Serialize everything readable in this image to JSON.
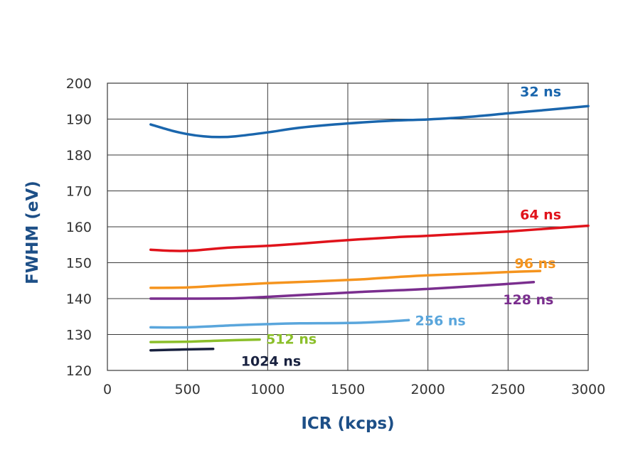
{
  "chart_data": {
    "type": "line",
    "title": "",
    "xlabel": "ICR (kcps)",
    "ylabel": "FWHM (eV)",
    "xlim": [
      0,
      3000
    ],
    "ylim": [
      120,
      200
    ],
    "xticks": [
      0,
      500,
      1000,
      1500,
      2000,
      2500,
      3000
    ],
    "yticks": [
      120,
      130,
      140,
      150,
      160,
      170,
      180,
      190,
      200
    ],
    "grid": true,
    "legend": "inline labels at line ends",
    "series": [
      {
        "name": "32 ns",
        "color": "#1a66ad",
        "x": [
          270,
          400,
          500,
          600,
          700,
          800,
          1000,
          1200,
          1500,
          1800,
          2000,
          2250,
          2500,
          2750,
          3000
        ],
        "y": [
          188.5,
          186.8,
          185.8,
          185.2,
          185.0,
          185.2,
          186.3,
          187.6,
          188.8,
          189.6,
          189.9,
          190.6,
          191.6,
          192.6,
          193.6
        ]
      },
      {
        "name": "64 ns",
        "color": "#e0131b",
        "x": [
          270,
          400,
          500,
          600,
          700,
          800,
          1000,
          1200,
          1500,
          1800,
          2000,
          2250,
          2500,
          2750,
          3000
        ],
        "y": [
          153.6,
          153.3,
          153.3,
          153.6,
          154.0,
          154.3,
          154.7,
          155.3,
          156.3,
          157.1,
          157.5,
          158.1,
          158.7,
          159.5,
          160.3
        ]
      },
      {
        "name": "96 ns",
        "color": "#f5941e",
        "x": [
          270,
          500,
          700,
          1000,
          1300,
          1600,
          1800,
          2000,
          2300,
          2500,
          2700
        ],
        "y": [
          143.0,
          143.1,
          143.6,
          144.3,
          144.8,
          145.4,
          146.0,
          146.5,
          147.0,
          147.4,
          147.7
        ]
      },
      {
        "name": "128 ns",
        "color": "#7a2e8e",
        "x": [
          270,
          500,
          800,
          1000,
          1300,
          1600,
          1800,
          2000,
          2300,
          2500,
          2660
        ],
        "y": [
          140.0,
          140.0,
          140.1,
          140.5,
          141.2,
          141.9,
          142.3,
          142.7,
          143.5,
          144.1,
          144.6
        ]
      },
      {
        "name": "256 ns",
        "color": "#5aa6dc",
        "x": [
          270,
          500,
          800,
          1000,
          1200,
          1500,
          1700,
          1880
        ],
        "y": [
          132.0,
          132.0,
          132.6,
          132.9,
          133.1,
          133.2,
          133.5,
          134.0
        ]
      },
      {
        "name": "512 ns",
        "color": "#8bbf2a",
        "x": [
          270,
          500,
          700,
          950
        ],
        "y": [
          127.9,
          128.0,
          128.3,
          128.6
        ]
      },
      {
        "name": "1024 ns",
        "color": "#18213f",
        "x": [
          270,
          450,
          660
        ],
        "y": [
          125.6,
          125.8,
          126.0
        ]
      }
    ]
  }
}
